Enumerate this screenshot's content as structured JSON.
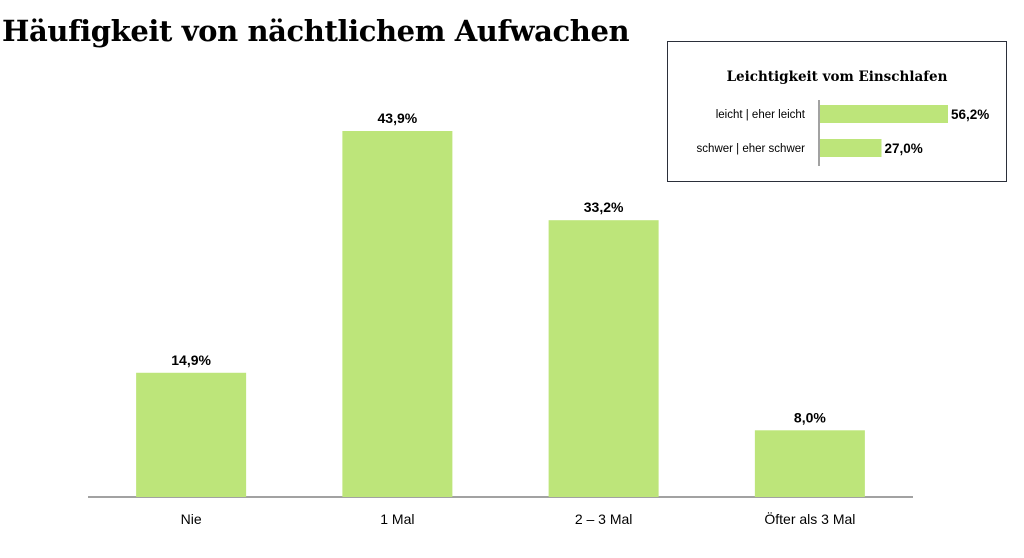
{
  "title": "Häufigkeit von nächtlichem Aufwachen",
  "colors": {
    "bar": "#bde57a",
    "axis": "#444444"
  },
  "chart_data": [
    {
      "type": "bar",
      "title": "Häufigkeit von nächtlichem Aufwachen",
      "categories": [
        "Nie",
        "1 Mal",
        "2 – 3 Mal",
        "Öfter als 3 Mal"
      ],
      "values": [
        14.9,
        43.9,
        33.2,
        8.0
      ],
      "value_labels": [
        "14,9%",
        "43,9%",
        "33,2%",
        "8,0%"
      ],
      "unit": "%",
      "ylim": [
        0,
        50
      ],
      "grid": false
    },
    {
      "type": "bar",
      "orientation": "horizontal",
      "title": "Leichtigkeit vom Einschlafen",
      "categories": [
        "leicht | eher leicht",
        "schwer | eher schwer"
      ],
      "values": [
        56.2,
        27.0
      ],
      "value_labels": [
        "56,2%",
        "27,0%"
      ],
      "unit": "%",
      "xlim": [
        0,
        56.2
      ],
      "grid": false
    }
  ]
}
